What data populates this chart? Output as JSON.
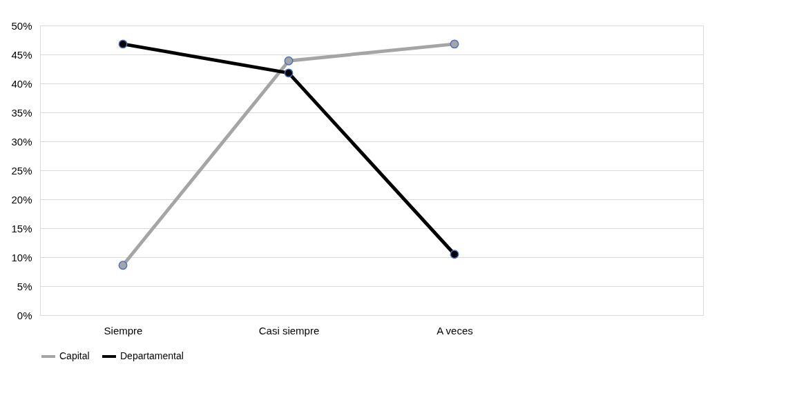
{
  "chart_data": {
    "type": "line",
    "categories": [
      "Siempre",
      "Casi siempre",
      "A veces",
      null
    ],
    "series": [
      {
        "name": "Capital",
        "color": "#a5a5a5",
        "values": [
          8.6,
          43.9,
          46.8,
          null
        ]
      },
      {
        "name": "Departamental",
        "color": "#000000",
        "values": [
          46.8,
          41.8,
          10.5,
          null
        ]
      }
    ],
    "ylim": [
      0,
      50
    ],
    "yticks": [
      {
        "value": 0,
        "label": "0%"
      },
      {
        "value": 5,
        "label": "5%"
      },
      {
        "value": 10,
        "label": "10%"
      },
      {
        "value": 15,
        "label": "15%"
      },
      {
        "value": 20,
        "label": "20%"
      },
      {
        "value": 25,
        "label": "25%"
      },
      {
        "value": 30,
        "label": "30%"
      },
      {
        "value": 35,
        "label": "35%"
      },
      {
        "value": 40,
        "label": "40%"
      },
      {
        "value": 45,
        "label": "45%"
      },
      {
        "value": 50,
        "label": "50%"
      }
    ],
    "grid": "y",
    "legend": "bottom",
    "marker": "circle",
    "line_style": "solid"
  }
}
